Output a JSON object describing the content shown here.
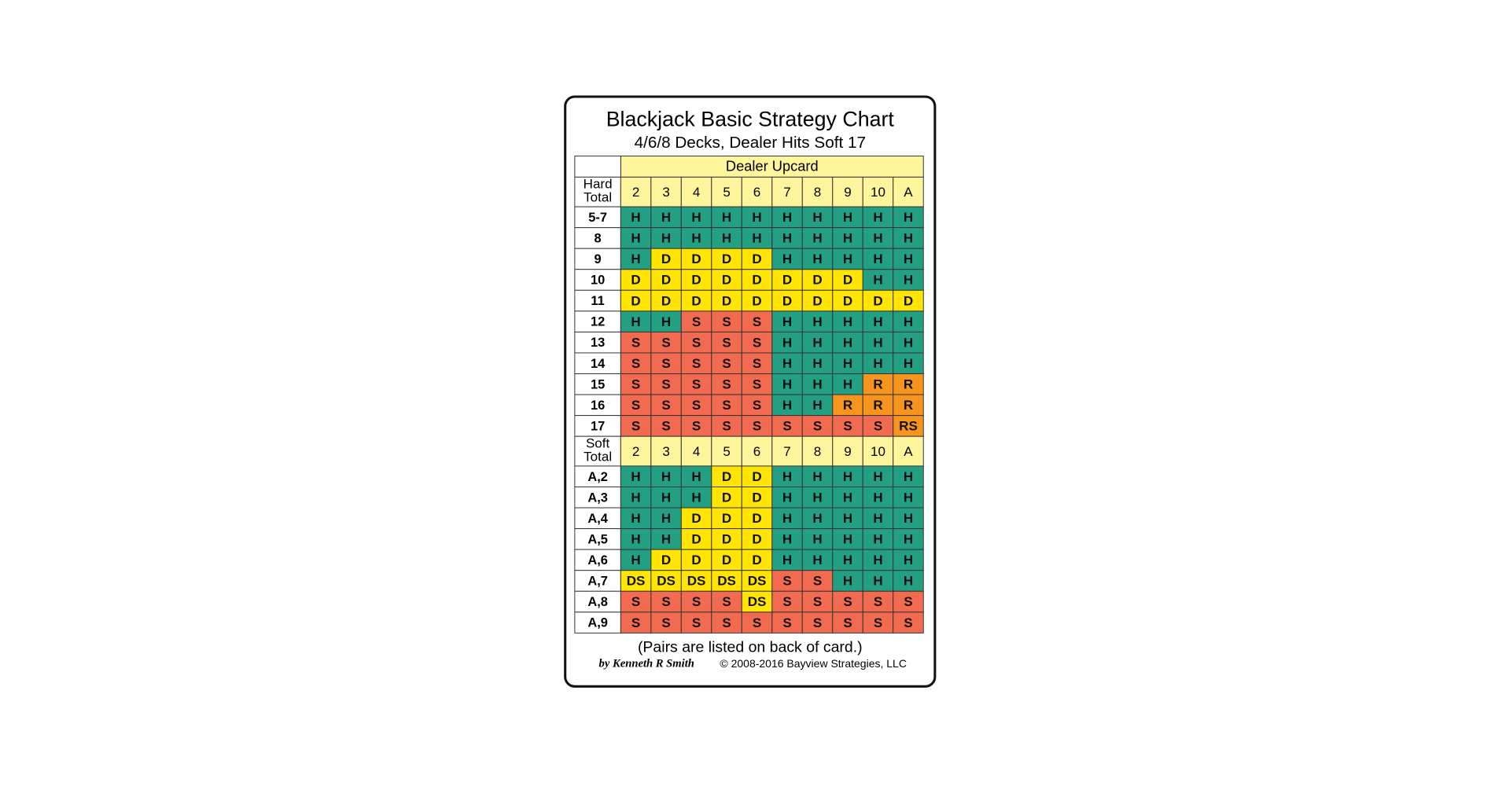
{
  "title": "Blackjack Basic Strategy Chart",
  "subtitle": "4/6/8 Decks, Dealer Hits Soft 17",
  "upcard_header": "Dealer Upcard",
  "action_colors": {
    "H": "#23a084",
    "D": "#ffe500",
    "S": "#f26b50",
    "R": "#f7941d",
    "RS": "#f7941d",
    "DS": "#ffe500"
  },
  "sections": [
    {
      "label_lines": [
        "Hard",
        "Total"
      ],
      "columns": [
        "2",
        "3",
        "4",
        "5",
        "6",
        "7",
        "8",
        "9",
        "10",
        "A"
      ],
      "rows": [
        {
          "label": "5-7",
          "cells": [
            "H",
            "H",
            "H",
            "H",
            "H",
            "H",
            "H",
            "H",
            "H",
            "H"
          ]
        },
        {
          "label": "8",
          "cells": [
            "H",
            "H",
            "H",
            "H",
            "H",
            "H",
            "H",
            "H",
            "H",
            "H"
          ]
        },
        {
          "label": "9",
          "cells": [
            "H",
            "D",
            "D",
            "D",
            "D",
            "H",
            "H",
            "H",
            "H",
            "H"
          ]
        },
        {
          "label": "10",
          "cells": [
            "D",
            "D",
            "D",
            "D",
            "D",
            "D",
            "D",
            "D",
            "H",
            "H"
          ]
        },
        {
          "label": "11",
          "cells": [
            "D",
            "D",
            "D",
            "D",
            "D",
            "D",
            "D",
            "D",
            "D",
            "D"
          ]
        },
        {
          "label": "12",
          "cells": [
            "H",
            "H",
            "S",
            "S",
            "S",
            "H",
            "H",
            "H",
            "H",
            "H"
          ]
        },
        {
          "label": "13",
          "cells": [
            "S",
            "S",
            "S",
            "S",
            "S",
            "H",
            "H",
            "H",
            "H",
            "H"
          ]
        },
        {
          "label": "14",
          "cells": [
            "S",
            "S",
            "S",
            "S",
            "S",
            "H",
            "H",
            "H",
            "H",
            "H"
          ]
        },
        {
          "label": "15",
          "cells": [
            "S",
            "S",
            "S",
            "S",
            "S",
            "H",
            "H",
            "H",
            "R",
            "R"
          ]
        },
        {
          "label": "16",
          "cells": [
            "S",
            "S",
            "S",
            "S",
            "S",
            "H",
            "H",
            "R",
            "R",
            "R"
          ]
        },
        {
          "label": "17",
          "cells": [
            "S",
            "S",
            "S",
            "S",
            "S",
            "S",
            "S",
            "S",
            "S",
            "RS"
          ]
        }
      ]
    },
    {
      "label_lines": [
        "Soft",
        "Total"
      ],
      "columns": [
        "2",
        "3",
        "4",
        "5",
        "6",
        "7",
        "8",
        "9",
        "10",
        "A"
      ],
      "rows": [
        {
          "label": "A,2",
          "cells": [
            "H",
            "H",
            "H",
            "D",
            "D",
            "H",
            "H",
            "H",
            "H",
            "H"
          ]
        },
        {
          "label": "A,3",
          "cells": [
            "H",
            "H",
            "H",
            "D",
            "D",
            "H",
            "H",
            "H",
            "H",
            "H"
          ]
        },
        {
          "label": "A,4",
          "cells": [
            "H",
            "H",
            "D",
            "D",
            "D",
            "H",
            "H",
            "H",
            "H",
            "H"
          ]
        },
        {
          "label": "A,5",
          "cells": [
            "H",
            "H",
            "D",
            "D",
            "D",
            "H",
            "H",
            "H",
            "H",
            "H"
          ]
        },
        {
          "label": "A,6",
          "cells": [
            "H",
            "D",
            "D",
            "D",
            "D",
            "H",
            "H",
            "H",
            "H",
            "H"
          ]
        },
        {
          "label": "A,7",
          "cells": [
            "DS",
            "DS",
            "DS",
            "DS",
            "DS",
            "S",
            "S",
            "H",
            "H",
            "H"
          ]
        },
        {
          "label": "A,8",
          "cells": [
            "S",
            "S",
            "S",
            "S",
            "DS",
            "S",
            "S",
            "S",
            "S",
            "S"
          ]
        },
        {
          "label": "A,9",
          "cells": [
            "S",
            "S",
            "S",
            "S",
            "S",
            "S",
            "S",
            "S",
            "S",
            "S"
          ]
        }
      ]
    }
  ],
  "footer": {
    "note": "(Pairs are listed on back of card.)",
    "author": "by Kenneth R Smith",
    "copyright": "© 2008-2016 Bayview Strategies, LLC"
  }
}
